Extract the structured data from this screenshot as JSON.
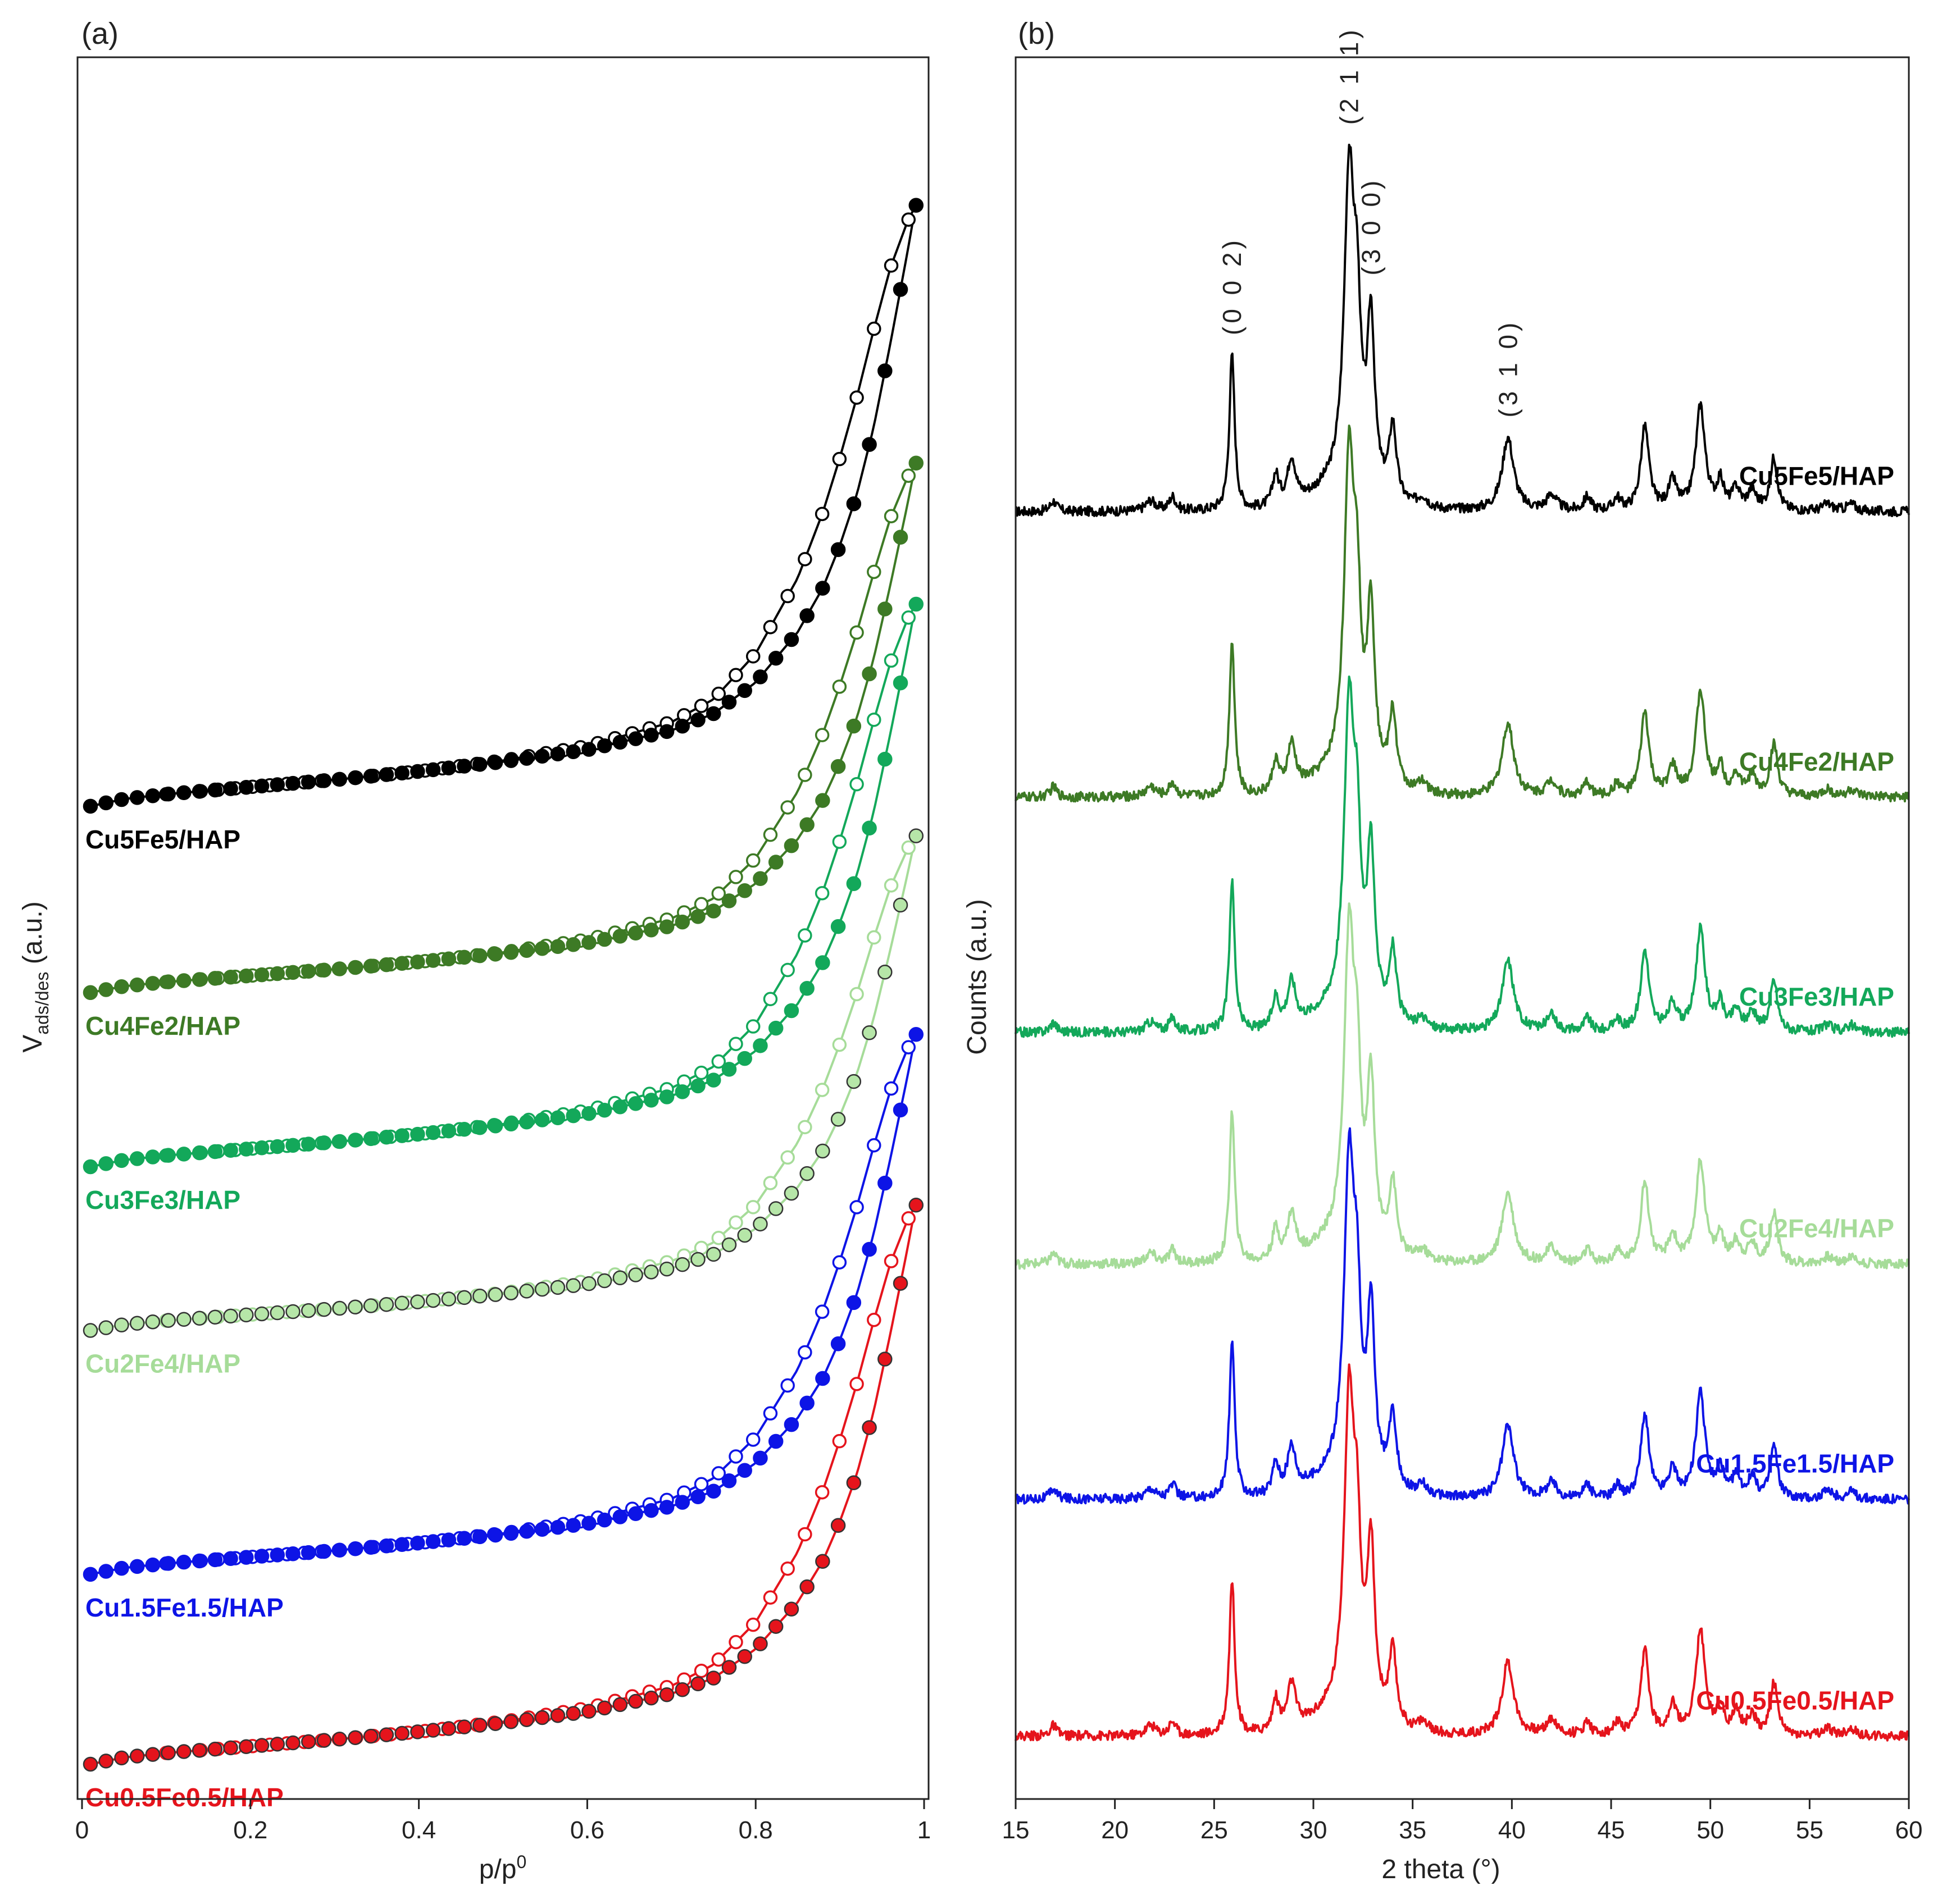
{
  "chart_data": [
    {
      "type": "scatter",
      "panel_label": "(a)",
      "title": "",
      "xlabel": "p/p",
      "xlabel_sup": "0",
      "ylabel_main": "V",
      "ylabel_sub": "ads/des",
      "ylabel_unit": " (a.u.)",
      "xlim": [
        0,
        1
      ],
      "ylim": [
        0,
        100
      ],
      "x_ticks": [
        "0",
        "0.2",
        "0.4",
        "0.6",
        "0.8",
        "1"
      ],
      "x_tick_values": [
        0,
        0.2,
        0.4,
        0.6,
        0.8,
        1.0
      ],
      "grid": false,
      "curve_shape": {
        "x": [
          0.01,
          0.05,
          0.1,
          0.2,
          0.3,
          0.4,
          0.5,
          0.6,
          0.7,
          0.75,
          0.8,
          0.85,
          0.88,
          0.9,
          0.92,
          0.94,
          0.96,
          0.98,
          0.99
        ],
        "adsorption_rise": [
          0,
          0.6,
          1.0,
          1.6,
          2.2,
          2.9,
          3.7,
          4.7,
          6.3,
          7.7,
          10.3,
          14.5,
          18.2,
          21.7,
          25.9,
          31.5,
          38.5,
          46.0,
          50.0
        ],
        "desorption_rise": [
          0,
          0.6,
          1.0,
          1.6,
          2.2,
          2.9,
          3.8,
          5.0,
          7.0,
          8.9,
          12.7,
          19.0,
          24.5,
          29.0,
          34.0,
          39.6,
          44.8,
          48.6,
          50.0
        ]
      },
      "series": [
        {
          "name": "Cu5Fe5/HAP",
          "color": "#000000",
          "ads_fill": "#000000",
          "baseline": 57.0,
          "rise": 34.5
        },
        {
          "name": "Cu4Fe2/HAP",
          "color": "#3d7a25",
          "ads_fill": "#3d7a25",
          "baseline": 46.3,
          "rise": 30.4
        },
        {
          "name": "Cu3Fe3/HAP",
          "color": "#13a85a",
          "ads_fill": "#13a85a",
          "baseline": 36.3,
          "rise": 32.3
        },
        {
          "name": "Cu2Fe4/HAP",
          "color": "#a6dc99",
          "ads_fill": "#b6e6a8",
          "baseline": 26.9,
          "rise": 28.4
        },
        {
          "name": "Cu1.5Fe1.5/HAP",
          "color": "#0d14e6",
          "ads_fill": "#0d14e6",
          "baseline": 12.9,
          "rise": 31.0
        },
        {
          "name": "Cu0.5Fe0.5/HAP",
          "color": "#e5141c",
          "ads_fill": "#e5141c",
          "baseline": 2.0,
          "rise": 32.1
        }
      ]
    },
    {
      "type": "line",
      "panel_label": "(b)",
      "title": "",
      "xlabel": "2 theta (°)",
      "ylabel": "Counts (a.u.)",
      "xlim": [
        15,
        60
      ],
      "ylim": [
        0,
        100
      ],
      "x_ticks": [
        "15",
        "20",
        "25",
        "30",
        "35",
        "40",
        "45",
        "50",
        "55",
        "60"
      ],
      "x_tick_values": [
        15,
        20,
        25,
        30,
        35,
        40,
        45,
        50,
        55,
        60
      ],
      "grid": false,
      "peak_annotations": [
        {
          "label": "(0 0 2)",
          "x": 25.9
        },
        {
          "label": "(2 1 1)",
          "x": 31.8
        },
        {
          "label": "(3 0 0)",
          "x": 32.9
        },
        {
          "label": "(3 1 0)",
          "x": 39.8
        }
      ],
      "pattern_peaks": [
        {
          "x": 16.9,
          "h": 0.6,
          "w": 0.2
        },
        {
          "x": 21.8,
          "h": 0.6,
          "w": 0.3
        },
        {
          "x": 22.9,
          "h": 0.8,
          "w": 0.2
        },
        {
          "x": 25.9,
          "h": 8.9,
          "w": 0.16
        },
        {
          "x": 28.1,
          "h": 1.8,
          "w": 0.2
        },
        {
          "x": 28.9,
          "h": 2.6,
          "w": 0.25
        },
        {
          "x": 31.8,
          "h": 17.6,
          "w": 0.3
        },
        {
          "x": 32.2,
          "h": 8.0,
          "w": 0.22
        },
        {
          "x": 32.9,
          "h": 9.5,
          "w": 0.22
        },
        {
          "x": 34.0,
          "h": 4.2,
          "w": 0.22
        },
        {
          "x": 35.5,
          "h": 0.6,
          "w": 0.3
        },
        {
          "x": 39.8,
          "h": 4.2,
          "w": 0.35
        },
        {
          "x": 42.0,
          "h": 0.9,
          "w": 0.3
        },
        {
          "x": 43.8,
          "h": 0.8,
          "w": 0.2
        },
        {
          "x": 45.3,
          "h": 0.7,
          "w": 0.2
        },
        {
          "x": 46.7,
          "h": 4.8,
          "w": 0.25
        },
        {
          "x": 48.1,
          "h": 1.6,
          "w": 0.25
        },
        {
          "x": 49.5,
          "h": 6.0,
          "w": 0.28
        },
        {
          "x": 50.5,
          "h": 1.6,
          "w": 0.2
        },
        {
          "x": 51.3,
          "h": 1.2,
          "w": 0.25
        },
        {
          "x": 52.1,
          "h": 1.1,
          "w": 0.25
        },
        {
          "x": 53.2,
          "h": 3.0,
          "w": 0.22
        },
        {
          "x": 55.9,
          "h": 0.4,
          "w": 0.3
        },
        {
          "x": 57.1,
          "h": 0.4,
          "w": 0.3
        }
      ],
      "series": [
        {
          "name": "Cu5Fe5/HAP",
          "color": "#000000",
          "baseline": 73.9,
          "scale": 1.0
        },
        {
          "name": "Cu4Fe2/HAP",
          "color": "#3d7a25",
          "baseline": 57.5,
          "scale": 1.0
        },
        {
          "name": "Cu3Fe3/HAP",
          "color": "#13a85a",
          "baseline": 44.0,
          "scale": 0.97
        },
        {
          "name": "Cu2Fe4/HAP",
          "color": "#a6dc99",
          "baseline": 30.7,
          "scale": 0.97
        },
        {
          "name": "Cu1.5Fe1.5/HAP",
          "color": "#0d14e6",
          "baseline": 17.2,
          "scale": 1.0
        },
        {
          "name": "Cu0.5Fe0.5/HAP",
          "color": "#e5141c",
          "baseline": 3.6,
          "scale": 1.0
        }
      ]
    }
  ]
}
